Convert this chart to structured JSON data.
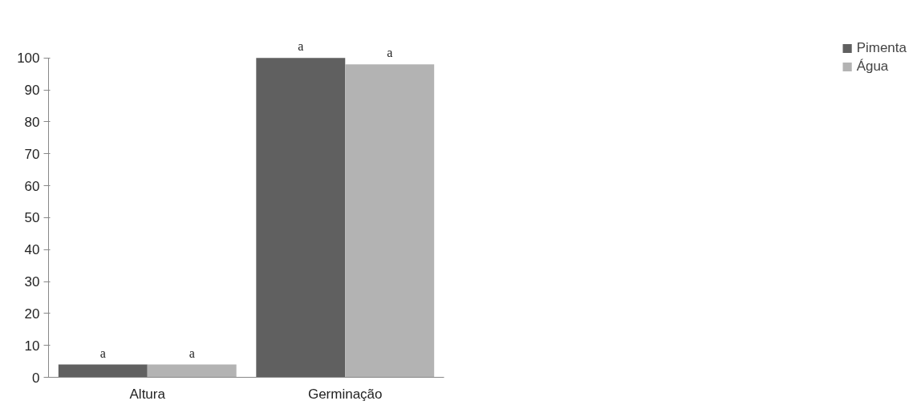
{
  "chart_data": {
    "type": "bar",
    "categories": [
      "Altura",
      "Germinação"
    ],
    "series": [
      {
        "name": "Pimenta",
        "color": "#606060",
        "values": [
          4,
          100
        ],
        "value_labels": [
          "a",
          "a"
        ]
      },
      {
        "name": "Água",
        "color": "#b3b3b3",
        "values": [
          4,
          98
        ],
        "value_labels": [
          "a",
          "a"
        ]
      }
    ],
    "ylim": [
      0,
      100
    ],
    "yticks": [
      0,
      10,
      20,
      30,
      40,
      50,
      60,
      70,
      80,
      90,
      100
    ],
    "grid": false,
    "legend": "right"
  }
}
